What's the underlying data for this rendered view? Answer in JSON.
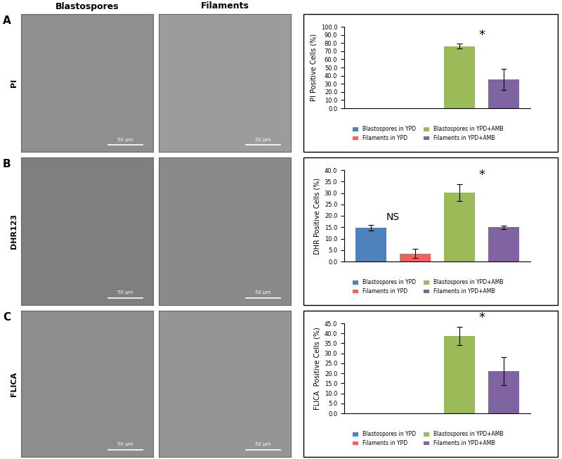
{
  "panel_letters": [
    "A",
    "B",
    "C"
  ],
  "row_labels": [
    "PI",
    "DHR123",
    "FLICA"
  ],
  "column_headers": [
    "Blastospores",
    "Filaments"
  ],
  "scale_bar_label": "50 µm",
  "chart_data": [
    {
      "type": "bar",
      "y_label": "PI Positive Cells (%)",
      "categories": [
        "Blastospores in YPD",
        "Filaments in YPD",
        "Blastospores in YPD+AMB",
        "Filaments in YPD+AMB"
      ],
      "values": [
        null,
        null,
        76.0,
        35.0
      ],
      "errors": [
        null,
        null,
        3.0,
        13.0
      ],
      "colors": [
        "#4f81bd",
        "#f26060",
        "#9bbb59",
        "#8064a2"
      ],
      "ylim": [
        0,
        100
      ],
      "yticks": [
        {
          "value": 0,
          "label": "0.0"
        },
        {
          "value": 10,
          "label": "10.0"
        },
        {
          "value": 20,
          "label": "20.0"
        },
        {
          "value": 30,
          "label": "30.0"
        },
        {
          "value": 40,
          "label": "40.0"
        },
        {
          "value": 50,
          "label": "50.0"
        },
        {
          "value": 60,
          "label": "60.0"
        },
        {
          "value": 70,
          "label": "70.0"
        },
        {
          "value": 80,
          "label": "80.0"
        },
        {
          "value": 90,
          "label": "90.0"
        },
        {
          "value": 100,
          "label": "100.0"
        }
      ],
      "annotations": [
        {
          "text": "*",
          "categories": [
            "Blastospores in YPD+AMB",
            "Filaments in YPD+AMB"
          ]
        }
      ],
      "legend": "lower center",
      "tick_labels": "y",
      "grid": false
    },
    {
      "type": "bar",
      "y_label": "DHR Positive Cells (%)",
      "categories": [
        "Blastospores in YPD",
        "Filaments in YPD",
        "Blastospores in YPD+AMB",
        "Filaments in YPD+AMB"
      ],
      "values": [
        14.7,
        3.5,
        30.2,
        15.0
      ],
      "errors": [
        1.2,
        2.0,
        3.8,
        0.7
      ],
      "colors": [
        "#4f81bd",
        "#f26060",
        "#9bbb59",
        "#8064a2"
      ],
      "ylim": [
        0,
        40
      ],
      "yticks": [
        {
          "value": 0,
          "label": "0.0"
        },
        {
          "value": 5,
          "label": "5.0"
        },
        {
          "value": 10,
          "label": "10.0"
        },
        {
          "value": 15,
          "label": "15.0"
        },
        {
          "value": 20,
          "label": "20.0"
        },
        {
          "value": 25,
          "label": "25.0"
        },
        {
          "value": 30,
          "label": "30.0"
        },
        {
          "value": 35,
          "label": "35.0"
        },
        {
          "value": 40,
          "label": "40.0"
        }
      ],
      "annotations": [
        {
          "text": "NS",
          "categories": [
            "Blastospores in YPD",
            "Filaments in YPD"
          ]
        },
        {
          "text": "*",
          "categories": [
            "Blastospores in YPD+AMB",
            "Filaments in YPD+AMB"
          ]
        }
      ],
      "legend": "lower center",
      "tick_labels": "y",
      "grid": false
    },
    {
      "type": "bar",
      "y_label": "FLICA  Positive Cells (%)",
      "categories": [
        "Blastospores in YPD",
        "Filaments in YPD",
        "Blastospores in YPD+AMB",
        "Filaments in YPD+AMB"
      ],
      "values": [
        null,
        null,
        38.7,
        21.2
      ],
      "errors": [
        null,
        null,
        4.5,
        7.0
      ],
      "colors": [
        "#4f81bd",
        "#f26060",
        "#9bbb59",
        "#8064a2"
      ],
      "ylim": [
        0,
        45
      ],
      "yticks": [
        {
          "value": 0,
          "label": "0.0"
        },
        {
          "value": 5,
          "label": "5.0"
        },
        {
          "value": 10,
          "label": "10.0"
        },
        {
          "value": 15,
          "label": "15.0"
        },
        {
          "value": 20,
          "label": "20.0"
        },
        {
          "value": 25,
          "label": "25.0"
        },
        {
          "value": 30,
          "label": "30.0"
        },
        {
          "value": 35,
          "label": "35.0"
        },
        {
          "value": 40,
          "label": "40.0"
        },
        {
          "value": 45,
          "label": "45.0"
        }
      ],
      "annotations": [
        {
          "text": "*",
          "categories": [
            "Blastospores in YPD+AMB",
            "Filaments in YPD+AMB"
          ]
        }
      ],
      "legend": "lower center",
      "tick_labels": "y",
      "grid": false
    }
  ]
}
